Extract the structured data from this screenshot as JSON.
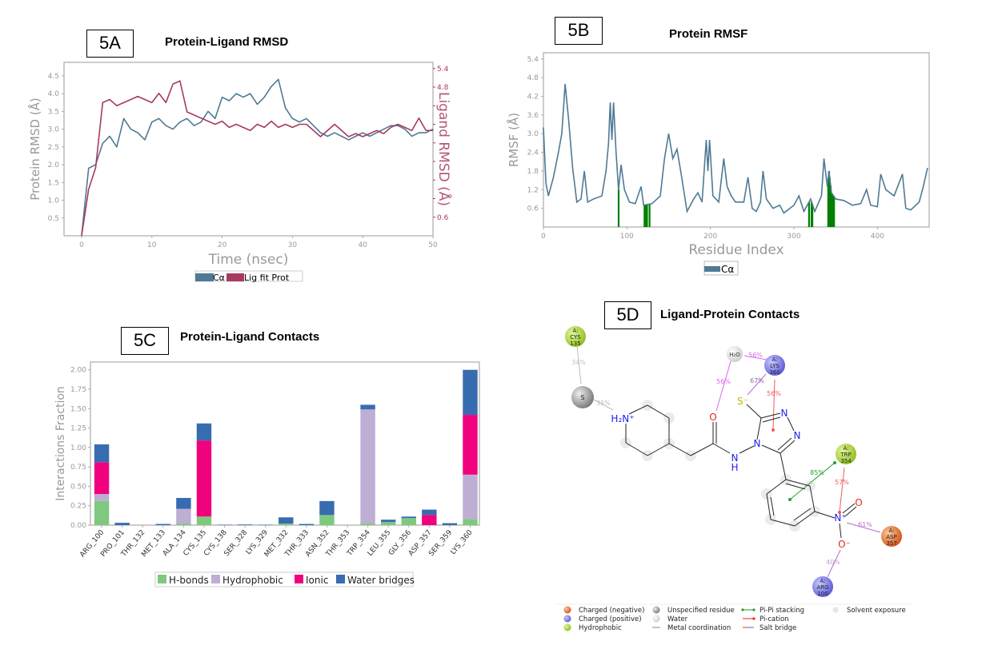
{
  "panels": {
    "a": {
      "label": "5A",
      "title": "Protein-Ligand RMSD"
    },
    "b": {
      "label": "5B",
      "title": "Protein RMSF"
    },
    "c": {
      "label": "5C",
      "title": "Protein-Ligand Contacts"
    },
    "d": {
      "label": "5D",
      "title": "Ligand-Protein Contacts"
    }
  },
  "chart_data": [
    {
      "id": "5A",
      "type": "line",
      "title": "Protein-Ligand RMSD",
      "xlabel": "Time (nsec)",
      "ylabel": "Protein RMSD (Å)",
      "y2label": "Ligand RMSD (Å)",
      "xlim": [
        -2.5,
        50
      ],
      "ylim": [
        0,
        4.88
      ],
      "y2lim": [
        0,
        5.6
      ],
      "xticks": [
        0,
        10,
        20,
        30,
        40,
        50
      ],
      "yticks": [
        0.5,
        1.0,
        1.5,
        2.0,
        2.5,
        3.0,
        3.5,
        4.0,
        4.5
      ],
      "y2ticks": [
        0.6,
        1.2,
        1.8,
        2.4,
        3.0,
        3.6,
        4.2,
        4.8,
        5.4
      ],
      "y2ticks_labeled": [
        "0.6",
        "4.8",
        "5.4"
      ],
      "legend": [
        "Cα",
        "Lig fit Prot"
      ],
      "legend_placement": "bottom",
      "colors": {
        "ca": "#4f7a94",
        "lig": "#a83a5e"
      },
      "x": [
        0,
        1,
        2,
        3,
        4,
        5,
        6,
        7,
        8,
        9,
        10,
        11,
        12,
        13,
        14,
        15,
        16,
        17,
        18,
        19,
        20,
        21,
        22,
        23,
        24,
        25,
        26,
        27,
        28,
        29,
        30,
        31,
        32,
        33,
        34,
        35,
        36,
        37,
        38,
        39,
        40,
        41,
        42,
        43,
        44,
        45,
        46,
        47,
        48,
        49,
        50
      ],
      "series": [
        {
          "name": "Cα",
          "axis": "left",
          "values": [
            0,
            1.9,
            2.0,
            2.6,
            2.8,
            2.5,
            3.3,
            3.0,
            2.9,
            2.7,
            3.2,
            3.3,
            3.1,
            3.0,
            3.2,
            3.3,
            3.1,
            3.2,
            3.5,
            3.3,
            3.9,
            3.8,
            4.0,
            3.9,
            4.0,
            3.7,
            3.9,
            4.2,
            4.4,
            3.6,
            3.3,
            3.2,
            3.3,
            3.1,
            2.9,
            2.8,
            2.9,
            2.8,
            2.7,
            2.8,
            2.9,
            2.8,
            2.9,
            3.0,
            3.1,
            3.1,
            3.0,
            2.8,
            2.9,
            2.9,
            3.0
          ]
        },
        {
          "name": "Lig fit Prot",
          "axis": "right",
          "values": [
            0,
            1.5,
            2.2,
            4.3,
            4.4,
            4.2,
            4.3,
            4.4,
            4.5,
            4.4,
            4.3,
            4.6,
            4.3,
            4.9,
            5.0,
            4.0,
            3.9,
            3.8,
            3.7,
            3.6,
            3.7,
            3.5,
            3.6,
            3.5,
            3.4,
            3.6,
            3.5,
            3.7,
            3.5,
            3.6,
            3.5,
            3.6,
            3.6,
            3.4,
            3.2,
            3.4,
            3.6,
            3.4,
            3.2,
            3.3,
            3.2,
            3.3,
            3.4,
            3.3,
            3.5,
            3.6,
            3.5,
            3.4,
            3.8,
            3.4,
            3.4
          ]
        }
      ]
    },
    {
      "id": "5B",
      "type": "line",
      "title": "Protein RMSF",
      "xlabel": "Residue Index",
      "ylabel": "RMSF (Å)",
      "xlim": [
        0,
        462
      ],
      "ylim": [
        0,
        5.6
      ],
      "xticks": [
        0,
        100,
        200,
        300,
        400
      ],
      "yticks": [
        0.6,
        1.2,
        1.8,
        2.4,
        3.0,
        3.6,
        4.2,
        4.8,
        5.4
      ],
      "legend": [
        "Cα"
      ],
      "legend_placement": "bottom",
      "colors": {
        "ca": "#4f7a94",
        "contacts": "#008000"
      },
      "points": [
        [
          0,
          3.2
        ],
        [
          3,
          1.4
        ],
        [
          6,
          1.0
        ],
        [
          12,
          1.6
        ],
        [
          18,
          2.4
        ],
        [
          22,
          3.0
        ],
        [
          26,
          4.6
        ],
        [
          30,
          3.5
        ],
        [
          35,
          1.9
        ],
        [
          40,
          0.8
        ],
        [
          45,
          0.9
        ],
        [
          49,
          1.8
        ],
        [
          53,
          0.8
        ],
        [
          60,
          0.9
        ],
        [
          70,
          1.0
        ],
        [
          75,
          1.8
        ],
        [
          78,
          2.7
        ],
        [
          80,
          4.0
        ],
        [
          82,
          2.8
        ],
        [
          84,
          4.0
        ],
        [
          87,
          2.4
        ],
        [
          90,
          1.2
        ],
        [
          93,
          2.0
        ],
        [
          97,
          1.2
        ],
        [
          103,
          0.8
        ],
        [
          110,
          0.75
        ],
        [
          117,
          1.3
        ],
        [
          120,
          0.7
        ],
        [
          130,
          0.75
        ],
        [
          140,
          1.0
        ],
        [
          145,
          2.2
        ],
        [
          150,
          3.0
        ],
        [
          155,
          2.2
        ],
        [
          160,
          2.5
        ],
        [
          165,
          1.7
        ],
        [
          172,
          0.5
        ],
        [
          180,
          0.9
        ],
        [
          185,
          1.1
        ],
        [
          190,
          0.8
        ],
        [
          195,
          2.8
        ],
        [
          197,
          1.8
        ],
        [
          199,
          2.8
        ],
        [
          203,
          1.0
        ],
        [
          210,
          0.8
        ],
        [
          216,
          2.2
        ],
        [
          220,
          1.3
        ],
        [
          225,
          1.0
        ],
        [
          230,
          0.8
        ],
        [
          240,
          0.8
        ],
        [
          245,
          1.6
        ],
        [
          250,
          0.6
        ],
        [
          255,
          0.5
        ],
        [
          260,
          0.8
        ],
        [
          263,
          1.8
        ],
        [
          267,
          0.9
        ],
        [
          275,
          0.6
        ],
        [
          283,
          0.7
        ],
        [
          288,
          0.45
        ],
        [
          300,
          0.7
        ],
        [
          306,
          1.0
        ],
        [
          312,
          0.5
        ],
        [
          320,
          0.9
        ],
        [
          325,
          0.5
        ],
        [
          333,
          1.0
        ],
        [
          336,
          2.2
        ],
        [
          340,
          1.3
        ],
        [
          342,
          1.8
        ],
        [
          345,
          1.1
        ],
        [
          350,
          0.9
        ],
        [
          360,
          0.85
        ],
        [
          370,
          0.7
        ],
        [
          380,
          0.75
        ],
        [
          387,
          1.2
        ],
        [
          392,
          0.7
        ],
        [
          400,
          0.65
        ],
        [
          404,
          1.7
        ],
        [
          410,
          1.2
        ],
        [
          420,
          1.0
        ],
        [
          430,
          1.7
        ],
        [
          434,
          0.6
        ],
        [
          440,
          0.55
        ],
        [
          450,
          0.8
        ],
        [
          455,
          1.3
        ],
        [
          460,
          1.9
        ]
      ],
      "ligand_contact_residues": [
        90,
        121,
        122,
        123,
        124,
        127,
        318,
        321,
        322,
        341,
        342,
        343,
        344,
        345,
        346,
        347,
        348
      ]
    },
    {
      "id": "5C",
      "type": "bar",
      "stacked": true,
      "title": "Protein-Ligand Contacts",
      "ylabel": "Interactions Fraction",
      "ylim": [
        0,
        2.1
      ],
      "yticks": [
        "0.00",
        "0.25",
        "0.50",
        "0.75",
        "1.00",
        "1.25",
        "1.50",
        "1.75",
        "2.00"
      ],
      "legend_placement": "bottom",
      "categories": [
        "ARG_100",
        "PRO_101",
        "THR_132",
        "MET_133",
        "ALA_134",
        "CYS_135",
        "CYS_138",
        "SER_328",
        "LYS_329",
        "MET_332",
        "THR_333",
        "ASN_352",
        "THR_353",
        "TRP_354",
        "LEU_355",
        "GLY_356",
        "ASP_357",
        "SER_359",
        "LYS_360"
      ],
      "series": [
        {
          "name": "H-bonds",
          "color": "#7fc97f",
          "values": [
            0.31,
            0,
            0,
            0,
            0.02,
            0.11,
            0,
            0,
            0,
            0.02,
            0,
            0.13,
            0,
            0.02,
            0.04,
            0.09,
            0,
            0,
            0.08
          ]
        },
        {
          "name": "Hydrophobic",
          "color": "#beaed4",
          "values": [
            0.09,
            0,
            0,
            0,
            0.19,
            0,
            0,
            0,
            0,
            0,
            0,
            0,
            0,
            1.47,
            0,
            0,
            0,
            0,
            0.57
          ]
        },
        {
          "name": "Ionic",
          "color": "#f0027f",
          "values": [
            0.41,
            0,
            0,
            0,
            0,
            0.98,
            0,
            0,
            0,
            0,
            0,
            0,
            0,
            0,
            0,
            0,
            0.13,
            0,
            0.77
          ]
        },
        {
          "name": "Water bridges",
          "color": "#386cb0",
          "values": [
            0.23,
            0.03,
            0,
            0.015,
            0.14,
            0.22,
            0.005,
            0.008,
            0.005,
            0.08,
            0.015,
            0.18,
            0,
            0.06,
            0.03,
            0.02,
            0.07,
            0.025,
            0.58
          ]
        }
      ]
    }
  ],
  "diagram_5d": {
    "residues": [
      {
        "id": "cys135",
        "chain": "A:",
        "name": "CYS",
        "num": "135",
        "type": "hydrophobic"
      },
      {
        "id": "lys360",
        "chain": "A:",
        "name": "LYS",
        "num": "360",
        "type": "positive"
      },
      {
        "id": "trp354",
        "chain": "A:",
        "name": "TRP",
        "num": "354",
        "type": "hydrophobic"
      },
      {
        "id": "asp357",
        "chain": "A:",
        "name": "ASP",
        "num": "357",
        "type": "negative"
      },
      {
        "id": "arg100",
        "chain": "A:",
        "name": "ARG",
        "num": "100",
        "type": "positive"
      }
    ],
    "water": "H₂O",
    "unspecified": "S",
    "atoms": {
      "nh2": "H₂N⁺",
      "o_carbonyl": "O",
      "nh": "N",
      "h": "H",
      "n_ring": "N",
      "n1": "N",
      "n2": "N",
      "s_minus": "S⁻",
      "n_plus": "N⁺",
      "o_nitro": "O",
      "o_minus": "O⁻"
    },
    "interactions": [
      {
        "pct": "34%",
        "kind": "metal"
      },
      {
        "pct": "35%",
        "kind": "metal"
      },
      {
        "pct": "56%",
        "kind": "hbond-water"
      },
      {
        "pct": "56%",
        "kind": "hbond-water"
      },
      {
        "pct": "67%",
        "kind": "salt"
      },
      {
        "pct": "56%",
        "kind": "pi-cation"
      },
      {
        "pct": "85%",
        "kind": "pi-pi"
      },
      {
        "pct": "57%",
        "kind": "pi-cation"
      },
      {
        "pct": "61%",
        "kind": "salt"
      },
      {
        "pct": "40%",
        "kind": "salt"
      }
    ],
    "legend": [
      {
        "label": "Charged (negative)",
        "icon": "orange-sphere"
      },
      {
        "label": "Charged (positive)",
        "icon": "blue-sphere"
      },
      {
        "label": "Hydrophobic",
        "icon": "green-sphere"
      },
      {
        "label": "Unspecified residue",
        "icon": "gray-sphere"
      },
      {
        "label": "Water",
        "icon": "white-sphere"
      },
      {
        "label": "Metal coordination",
        "icon": "gray-line"
      },
      {
        "label": "Pi-Pi stacking",
        "icon": "green-dot-line"
      },
      {
        "label": "Pi-cation",
        "icon": "red-dot-line"
      },
      {
        "label": "Salt bridge",
        "icon": "red-blue-line"
      },
      {
        "label": "Solvent exposure",
        "icon": "gray-halo"
      }
    ],
    "colors": {
      "negative": "#e8702a",
      "positive": "#7777ee",
      "hydrophobic": "#9ccc2c",
      "metal": "#bbbbbb",
      "pipi": "#2a9d2a",
      "pication": "#f05a5a",
      "salt": "#b070d0",
      "hbond": "#dd66ee"
    }
  }
}
